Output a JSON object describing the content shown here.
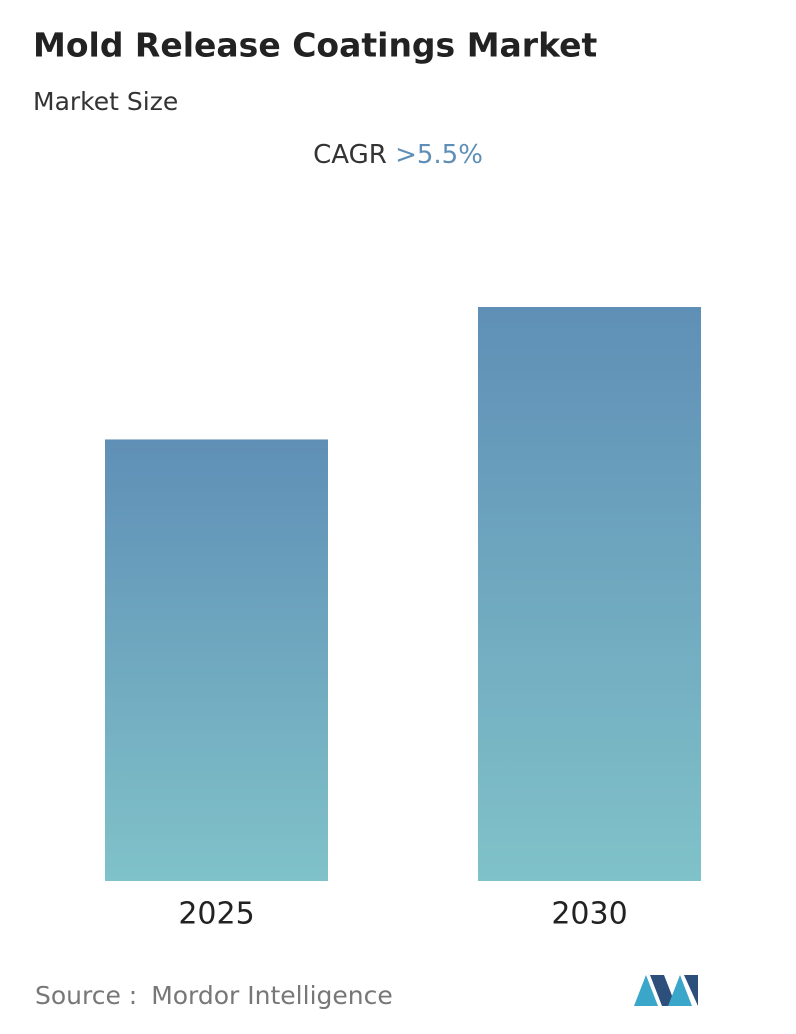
{
  "chart_data": {
    "type": "bar",
    "title": "Mold Release Coatings Market",
    "subtitle": "Market Size",
    "cagr_label": "CAGR",
    "cagr_value": ">5.5%",
    "categories": [
      "2025",
      "2030"
    ],
    "values": [
      1,
      1.3
    ],
    "color_top": "#5f8fb6",
    "color_bottom": "#80c2c9",
    "source_label": "Source :",
    "source": "Mordor Intelligence"
  }
}
